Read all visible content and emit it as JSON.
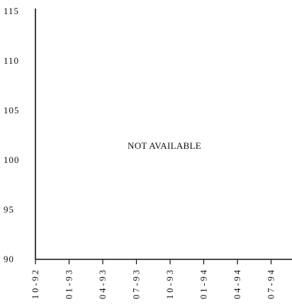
{
  "chart_data": {
    "type": "line",
    "title": "",
    "xlabel": "",
    "ylabel": "",
    "categories": [
      "10-92",
      "01-93",
      "04-93",
      "07-93",
      "10-93",
      "01-94",
      "04-94",
      "07-94"
    ],
    "yticks": [
      "115",
      "110",
      "105",
      "100",
      "95",
      "90"
    ],
    "ylim": [
      90,
      115
    ],
    "series": [],
    "annotation": "NOT AVAILABLE",
    "grid": false
  }
}
